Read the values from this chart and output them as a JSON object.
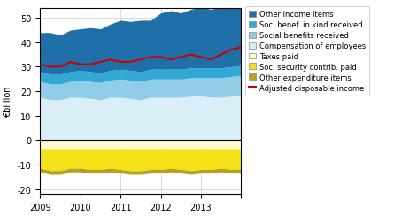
{
  "ylabel": "€billion",
  "ylim": [
    -22,
    54
  ],
  "yticks": [
    -20,
    -10,
    0,
    10,
    20,
    30,
    40,
    50
  ],
  "colors": {
    "comp_employees": "#daeef8",
    "social_benefits": "#92cde8",
    "soc_benef_kind": "#31a9d4",
    "other_income": "#1f6fa8",
    "taxes_paid": "#fffccc",
    "soc_sec": "#f5e118",
    "other_expend": "#b8a020",
    "adj_income_line": "#cc0000",
    "grid": "#cccccc",
    "background": "#ffffff"
  },
  "x": [
    0,
    1,
    2,
    3,
    4,
    5,
    6,
    7,
    8,
    9,
    10,
    11,
    12,
    13,
    14,
    15,
    16,
    17,
    18,
    19,
    20
  ],
  "xtick_positions": [
    0,
    4,
    8,
    12,
    16,
    20
  ],
  "xtick_labels": [
    "2009",
    "2010",
    "2011",
    "2012",
    "2013",
    ""
  ],
  "comp_employees": [
    17.5,
    16.5,
    16.5,
    17.5,
    17.5,
    17,
    16.5,
    17.5,
    17.5,
    17,
    16.5,
    17.5,
    17.5,
    17.5,
    17.5,
    18,
    18,
    17.5,
    17.5,
    18,
    18.5
  ],
  "social_benefits": [
    6.5,
    6.5,
    6.5,
    6.5,
    7,
    7,
    7,
    7,
    7.5,
    7.5,
    7.5,
    7.5,
    7.5,
    7.5,
    7.5,
    7.5,
    7.5,
    8,
    8,
    8,
    8
  ],
  "soc_benef_kind": [
    4,
    4,
    4,
    4,
    4,
    4,
    4,
    4,
    4,
    4,
    4,
    4,
    4,
    4,
    4,
    4,
    4,
    4,
    4,
    4,
    4
  ],
  "other_income": [
    16,
    17,
    16,
    17,
    17,
    18,
    18,
    19,
    20,
    20,
    21,
    20,
    23,
    24,
    23,
    24,
    25,
    24,
    26,
    26,
    27
  ],
  "taxes_paid": [
    -3.5,
    -3.5,
    -3.5,
    -3.5,
    -3.5,
    -3.5,
    -3.5,
    -3.5,
    -3.5,
    -3.5,
    -3.5,
    -3.5,
    -3.5,
    -3.5,
    -3.5,
    -3.5,
    -3.5,
    -3.5,
    -3.5,
    -3.5,
    -3.5
  ],
  "soc_sec": [
    -8,
    -9,
    -9,
    -8,
    -8,
    -8.5,
    -8.5,
    -8,
    -8.5,
    -9,
    -9,
    -8.5,
    -8.5,
    -8,
    -8.5,
    -9,
    -8.5,
    -8.5,
    -8,
    -8.5,
    -8.5
  ],
  "other_expend": [
    -1.5,
    -1.5,
    -1.5,
    -1.5,
    -1.5,
    -1.5,
    -1.5,
    -1.5,
    -1.5,
    -1.5,
    -1.5,
    -1.5,
    -1.5,
    -1.5,
    -1.5,
    -1.5,
    -1.5,
    -1.5,
    -1.5,
    -1.5,
    -1.5
  ],
  "adj_income": [
    31,
    30,
    30,
    32,
    31,
    31,
    32,
    33,
    32,
    32,
    33,
    34,
    34,
    33,
    34,
    35,
    34,
    33,
    35,
    37,
    38
  ],
  "legend_labels": [
    "Other income items",
    "Soc. benef. in kind received",
    "Social benefits received",
    "Compensation of employees",
    "Taxes paid",
    "Soc. security contrib. paid",
    "Other expenditure items",
    "Adjusted disposable income"
  ],
  "legend_colors_keys": [
    "other_income",
    "soc_benef_kind",
    "social_benefits",
    "comp_employees",
    "taxes_paid",
    "soc_sec",
    "other_expend"
  ]
}
